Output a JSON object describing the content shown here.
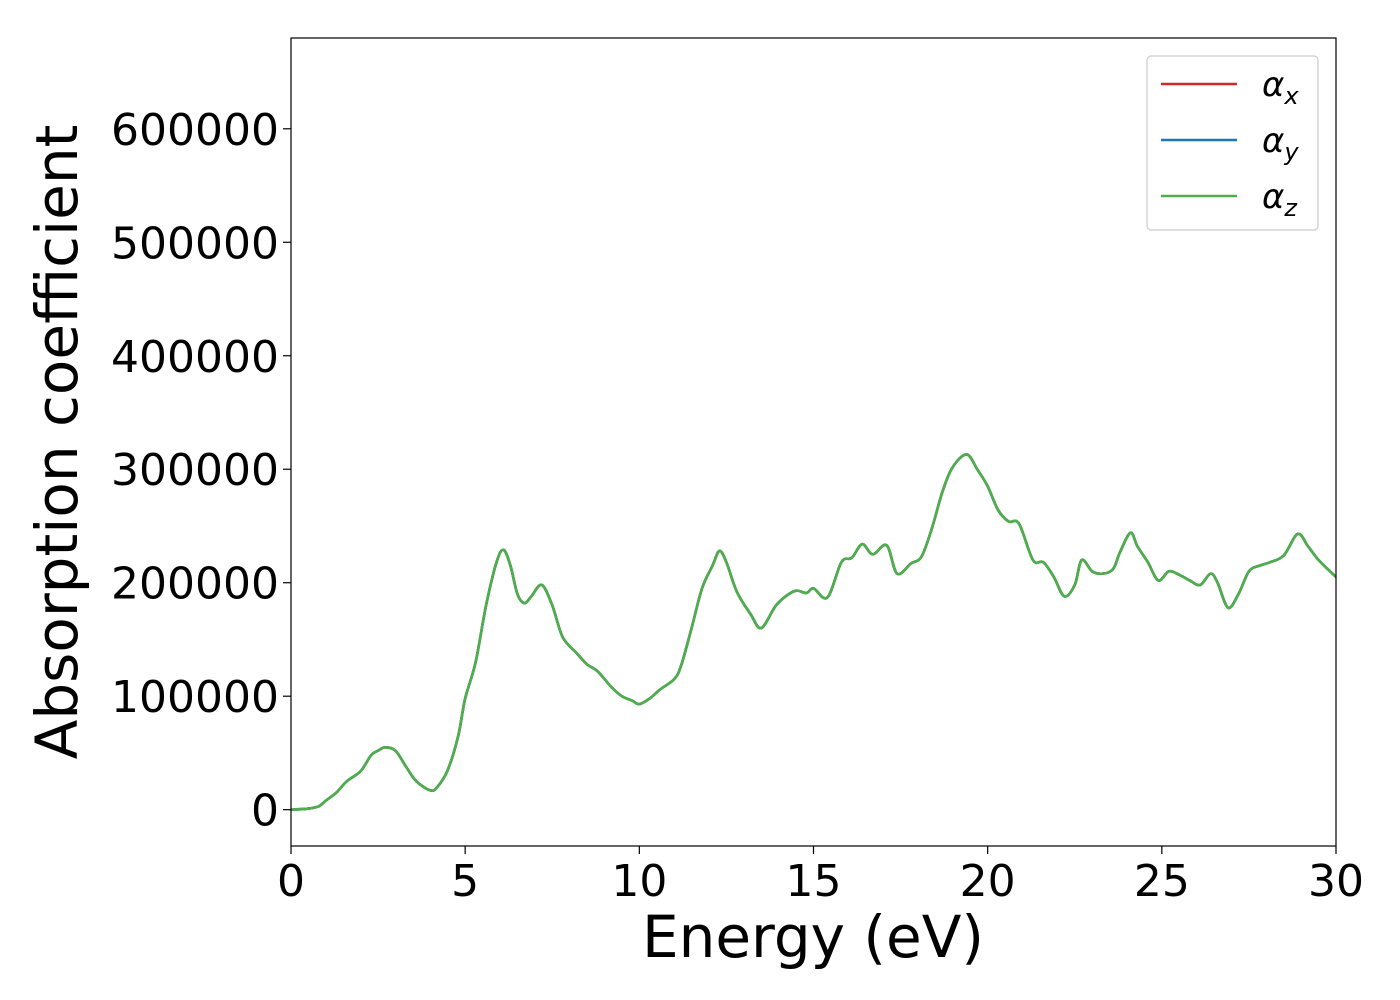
{
  "chart_data": {
    "type": "line",
    "title": "",
    "xlabel": "Energy (eV)",
    "ylabel": "Absorption coefficient",
    "xlim": [
      0,
      30
    ],
    "ylim": [
      -32000,
      680000
    ],
    "xticks": [
      0,
      5,
      10,
      15,
      20,
      25,
      30
    ],
    "xtick_labels": [
      "0",
      "5",
      "10",
      "15",
      "20",
      "25",
      "30"
    ],
    "yticks": [
      0,
      100000,
      200000,
      300000,
      400000,
      500000,
      600000
    ],
    "ytick_labels": [
      "0",
      "100000",
      "200000",
      "300000",
      "400000",
      "500000",
      "600000"
    ],
    "grid": false,
    "legend_position": "top-right",
    "series": [
      {
        "name": "αx",
        "name_base": "α",
        "name_sub": "x",
        "color": "#d62728",
        "x": [
          0,
          0.5,
          0.8,
          1.0,
          1.3,
          1.6,
          2.0,
          2.3,
          2.5,
          2.7,
          3.0,
          3.3,
          3.6,
          4.0,
          4.2,
          4.5,
          4.8,
          5.0,
          5.3,
          5.6,
          5.9,
          6.1,
          6.3,
          6.5,
          6.7,
          6.9,
          7.2,
          7.5,
          7.8,
          8.2,
          8.5,
          8.8,
          9.2,
          9.5,
          9.8,
          10.0,
          10.3,
          10.6,
          11.0,
          11.2,
          11.5,
          11.8,
          12.1,
          12.3,
          12.5,
          12.8,
          13.2,
          13.5,
          13.9,
          14.2,
          14.5,
          14.8,
          15.0,
          15.4,
          15.8,
          16.1,
          16.4,
          16.7,
          17.1,
          17.4,
          17.8,
          18.1,
          18.4,
          18.7,
          19.0,
          19.4,
          19.7,
          20.0,
          20.3,
          20.6,
          20.9,
          21.3,
          21.6,
          21.9,
          22.2,
          22.5,
          22.7,
          23.0,
          23.3,
          23.6,
          23.8,
          24.1,
          24.3,
          24.6,
          24.9,
          25.2,
          25.5,
          25.8,
          26.1,
          26.4,
          26.6,
          26.9,
          27.2,
          27.5,
          27.8,
          28.1,
          28.5,
          28.9,
          29.2,
          29.5,
          30.0
        ],
        "y": [
          0,
          1000,
          3000,
          8000,
          15000,
          25000,
          34000,
          48000,
          52000,
          55000,
          52000,
          38000,
          25000,
          17000,
          20000,
          35000,
          65000,
          98000,
          130000,
          180000,
          218000,
          229000,
          215000,
          190000,
          182000,
          188000,
          198000,
          180000,
          152000,
          138000,
          128000,
          122000,
          108000,
          100000,
          96000,
          93000,
          98000,
          106000,
          115000,
          127000,
          160000,
          195000,
          215000,
          228000,
          218000,
          192000,
          172000,
          160000,
          179000,
          188000,
          193000,
          191000,
          195000,
          187000,
          218000,
          222000,
          234000,
          225000,
          233000,
          208000,
          217000,
          223000,
          248000,
          280000,
          302000,
          313000,
          300000,
          285000,
          264000,
          254000,
          252000,
          220000,
          218000,
          205000,
          188000,
          198000,
          220000,
          210000,
          208000,
          212000,
          227000,
          244000,
          232000,
          218000,
          202000,
          210000,
          207000,
          202000,
          198000,
          208000,
          200000,
          178000,
          190000,
          210000,
          215000,
          218000,
          224000,
          243000,
          232000,
          220000,
          205000
        ]
      },
      {
        "name": "αy",
        "name_base": "α",
        "name_sub": "y",
        "color": "#1f77b4",
        "x": [
          0,
          0.5,
          0.8,
          1.0,
          1.3,
          1.6,
          2.0,
          2.3,
          2.5,
          2.7,
          3.0,
          3.3,
          3.6,
          4.0,
          4.2,
          4.5,
          4.8,
          5.0,
          5.3,
          5.6,
          5.9,
          6.1,
          6.3,
          6.5,
          6.7,
          6.9,
          7.2,
          7.5,
          7.8,
          8.2,
          8.5,
          8.8,
          9.2,
          9.5,
          9.8,
          10.0,
          10.3,
          10.6,
          11.0,
          11.2,
          11.5,
          11.8,
          12.1,
          12.3,
          12.5,
          12.8,
          13.2,
          13.5,
          13.9,
          14.2,
          14.5,
          14.8,
          15.0,
          15.4,
          15.8,
          16.1,
          16.4,
          16.7,
          17.1,
          17.4,
          17.8,
          18.1,
          18.4,
          18.7,
          19.0,
          19.4,
          19.7,
          20.0,
          20.3,
          20.6,
          20.9,
          21.3,
          21.6,
          21.9,
          22.2,
          22.5,
          22.7,
          23.0,
          23.3,
          23.6,
          23.8,
          24.1,
          24.3,
          24.6,
          24.9,
          25.2,
          25.5,
          25.8,
          26.1,
          26.4,
          26.6,
          26.9,
          27.2,
          27.5,
          27.8,
          28.1,
          28.5,
          28.9,
          29.2,
          29.5,
          30.0
        ],
        "y": [
          0,
          1000,
          3000,
          8000,
          15000,
          25000,
          34000,
          48000,
          52000,
          55000,
          52000,
          38000,
          25000,
          17000,
          20000,
          35000,
          65000,
          98000,
          130000,
          180000,
          218000,
          229000,
          215000,
          190000,
          182000,
          188000,
          198000,
          180000,
          152000,
          138000,
          128000,
          122000,
          108000,
          100000,
          96000,
          93000,
          98000,
          106000,
          115000,
          127000,
          160000,
          195000,
          215000,
          228000,
          218000,
          192000,
          172000,
          160000,
          179000,
          188000,
          193000,
          191000,
          195000,
          187000,
          218000,
          222000,
          234000,
          225000,
          233000,
          208000,
          217000,
          223000,
          248000,
          280000,
          302000,
          313000,
          300000,
          285000,
          264000,
          254000,
          252000,
          220000,
          218000,
          205000,
          188000,
          198000,
          220000,
          210000,
          208000,
          212000,
          227000,
          244000,
          232000,
          218000,
          202000,
          210000,
          207000,
          202000,
          198000,
          208000,
          200000,
          178000,
          190000,
          210000,
          215000,
          218000,
          224000,
          243000,
          232000,
          220000,
          205000
        ]
      },
      {
        "name": "αz",
        "name_base": "α",
        "name_sub": "z",
        "color": "#4daf4a",
        "x": [
          0,
          0.5,
          0.8,
          1.0,
          1.3,
          1.6,
          2.0,
          2.3,
          2.5,
          2.7,
          3.0,
          3.3,
          3.6,
          4.0,
          4.2,
          4.5,
          4.8,
          5.0,
          5.3,
          5.6,
          5.9,
          6.1,
          6.3,
          6.5,
          6.7,
          6.9,
          7.2,
          7.5,
          7.8,
          8.2,
          8.5,
          8.8,
          9.2,
          9.5,
          9.8,
          10.0,
          10.3,
          10.6,
          11.0,
          11.2,
          11.5,
          11.8,
          12.1,
          12.3,
          12.5,
          12.8,
          13.2,
          13.5,
          13.9,
          14.2,
          14.5,
          14.8,
          15.0,
          15.4,
          15.8,
          16.1,
          16.4,
          16.7,
          17.1,
          17.4,
          17.8,
          18.1,
          18.4,
          18.7,
          19.0,
          19.4,
          19.7,
          20.0,
          20.3,
          20.6,
          20.9,
          21.3,
          21.6,
          21.9,
          22.2,
          22.5,
          22.7,
          23.0,
          23.3,
          23.6,
          23.8,
          24.1,
          24.3,
          24.6,
          24.9,
          25.2,
          25.5,
          25.8,
          26.1,
          26.4,
          26.6,
          26.9,
          27.2,
          27.5,
          27.8,
          28.1,
          28.5,
          28.9,
          29.2,
          29.5,
          30.0
        ],
        "y": [
          0,
          1000,
          3000,
          8000,
          15000,
          25000,
          34000,
          48000,
          52000,
          55000,
          52000,
          38000,
          25000,
          17000,
          20000,
          35000,
          65000,
          98000,
          130000,
          180000,
          218000,
          229000,
          215000,
          190000,
          182000,
          188000,
          198000,
          180000,
          152000,
          138000,
          128000,
          122000,
          108000,
          100000,
          96000,
          93000,
          98000,
          106000,
          115000,
          127000,
          160000,
          195000,
          215000,
          228000,
          218000,
          192000,
          172000,
          160000,
          179000,
          188000,
          193000,
          191000,
          195000,
          187000,
          218000,
          222000,
          234000,
          225000,
          233000,
          208000,
          217000,
          223000,
          248000,
          280000,
          302000,
          313000,
          300000,
          285000,
          264000,
          254000,
          252000,
          220000,
          218000,
          205000,
          188000,
          198000,
          220000,
          210000,
          208000,
          212000,
          227000,
          244000,
          232000,
          218000,
          202000,
          210000,
          207000,
          202000,
          198000,
          208000,
          200000,
          178000,
          190000,
          210000,
          215000,
          218000,
          224000,
          243000,
          232000,
          220000,
          205000
        ]
      }
    ]
  }
}
